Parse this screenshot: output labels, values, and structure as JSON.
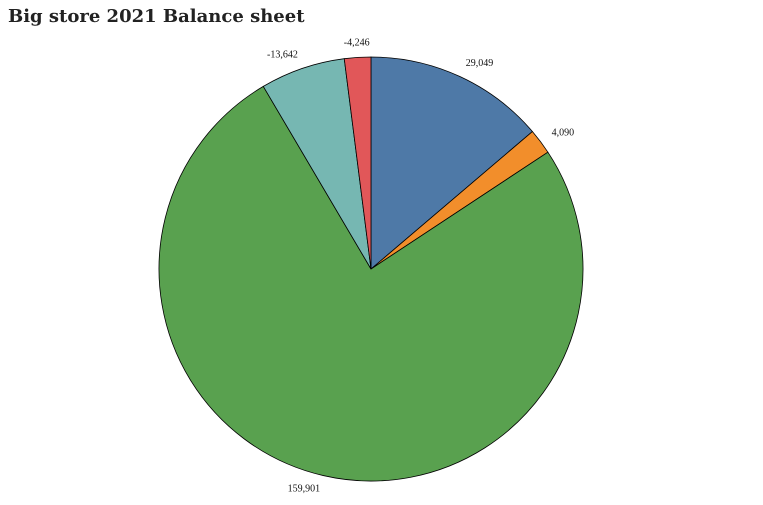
{
  "chart_data": {
    "type": "pie",
    "title": "Big store 2021 Balance sheet",
    "slices": [
      {
        "label": "29,049",
        "value": 29049,
        "color": "#4e79a7"
      },
      {
        "label": "4,090",
        "value": 4090,
        "color": "#f28e2b"
      },
      {
        "label": "159,901",
        "value": 159901,
        "color": "#59a14f"
      },
      {
        "label": "-13,642",
        "value": -13642,
        "color": "#76b7b2"
      },
      {
        "label": "-4,246",
        "value": -4246,
        "color": "#e15759"
      }
    ]
  }
}
